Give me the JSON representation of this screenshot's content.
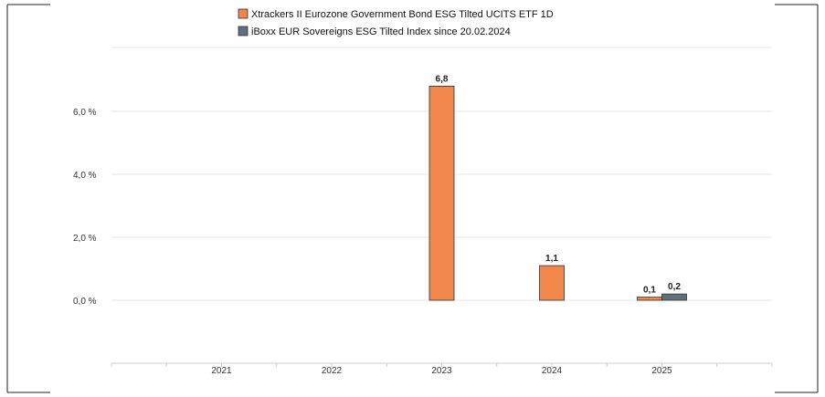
{
  "chart_data": {
    "type": "bar",
    "categories": [
      "2021",
      "2022",
      "2023",
      "2024",
      "2025"
    ],
    "series": [
      {
        "name": "Xtrackers II Eurozone Government Bond ESG Tilted UCITS ETF 1D",
        "color": "#f0864a",
        "values": [
          null,
          null,
          6.8,
          1.1,
          0.1
        ],
        "labels": [
          "",
          "",
          "6,8",
          "1,1",
          "0,1"
        ]
      },
      {
        "name": "iBoxx EUR Sovereigns ESG Tilted Index since 20.02.2024",
        "color": "#5f6f7b",
        "values": [
          null,
          null,
          null,
          null,
          0.2
        ],
        "labels": [
          "",
          "",
          "",
          "",
          "0,2"
        ]
      }
    ],
    "yticks": [
      0,
      2,
      4,
      6
    ],
    "ytick_labels": [
      "0,0 %",
      "2,0 %",
      "4,0 %",
      "6,0 %"
    ],
    "ylim": [
      -2,
      8
    ],
    "grid": true,
    "legend_position": "top"
  }
}
